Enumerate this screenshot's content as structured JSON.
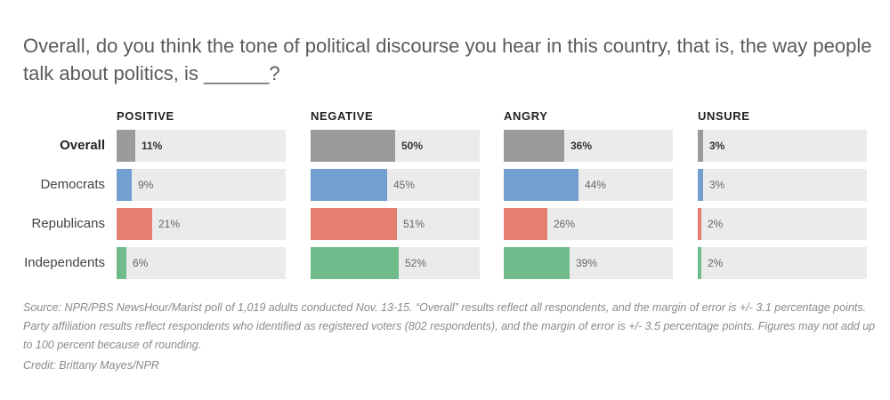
{
  "title": "Overall, do you think the tone of political discourse you hear in this country, that is, the way people talk about politics, is ______?",
  "source": "Source: NPR/PBS NewsHour/Marist poll of 1,019 adults conducted Nov. 13-15. “Overall” results reflect all respondents, and the margin of error is +/- 3.1 percentage points. Party affiliation results reflect respondents who identified as registered voters (802 respondents), and the margin of error is +/- 3.5 percentage points. Figures may not add up to 100 percent because of rounding.",
  "credit": "Credit: Brittany Mayes/NPR",
  "colors": {
    "Overall": "#9b9b9b",
    "Democrats": "#729fcf",
    "Republicans": "#e57f72",
    "Independents": "#6fbb8b",
    "track": "#ebebeb"
  },
  "chart_data": {
    "type": "bar",
    "categories": [
      "Overall",
      "Democrats",
      "Republicans",
      "Independents"
    ],
    "xlim": [
      0,
      100
    ],
    "series": [
      {
        "name": "POSITIVE",
        "values": [
          11,
          9,
          21,
          6
        ],
        "labels": [
          "11%",
          "9%",
          "21%",
          "6%"
        ]
      },
      {
        "name": "NEGATIVE",
        "values": [
          50,
          45,
          51,
          52
        ],
        "labels": [
          "50%",
          "45%",
          "51%",
          "52%"
        ]
      },
      {
        "name": "ANGRY",
        "values": [
          36,
          44,
          26,
          39
        ],
        "labels": [
          "36%",
          "44%",
          "26%",
          "39%"
        ]
      },
      {
        "name": "UNSURE",
        "values": [
          3,
          3,
          2,
          2
        ],
        "labels": [
          "3%",
          "3%",
          "2%",
          "2%"
        ]
      }
    ]
  }
}
